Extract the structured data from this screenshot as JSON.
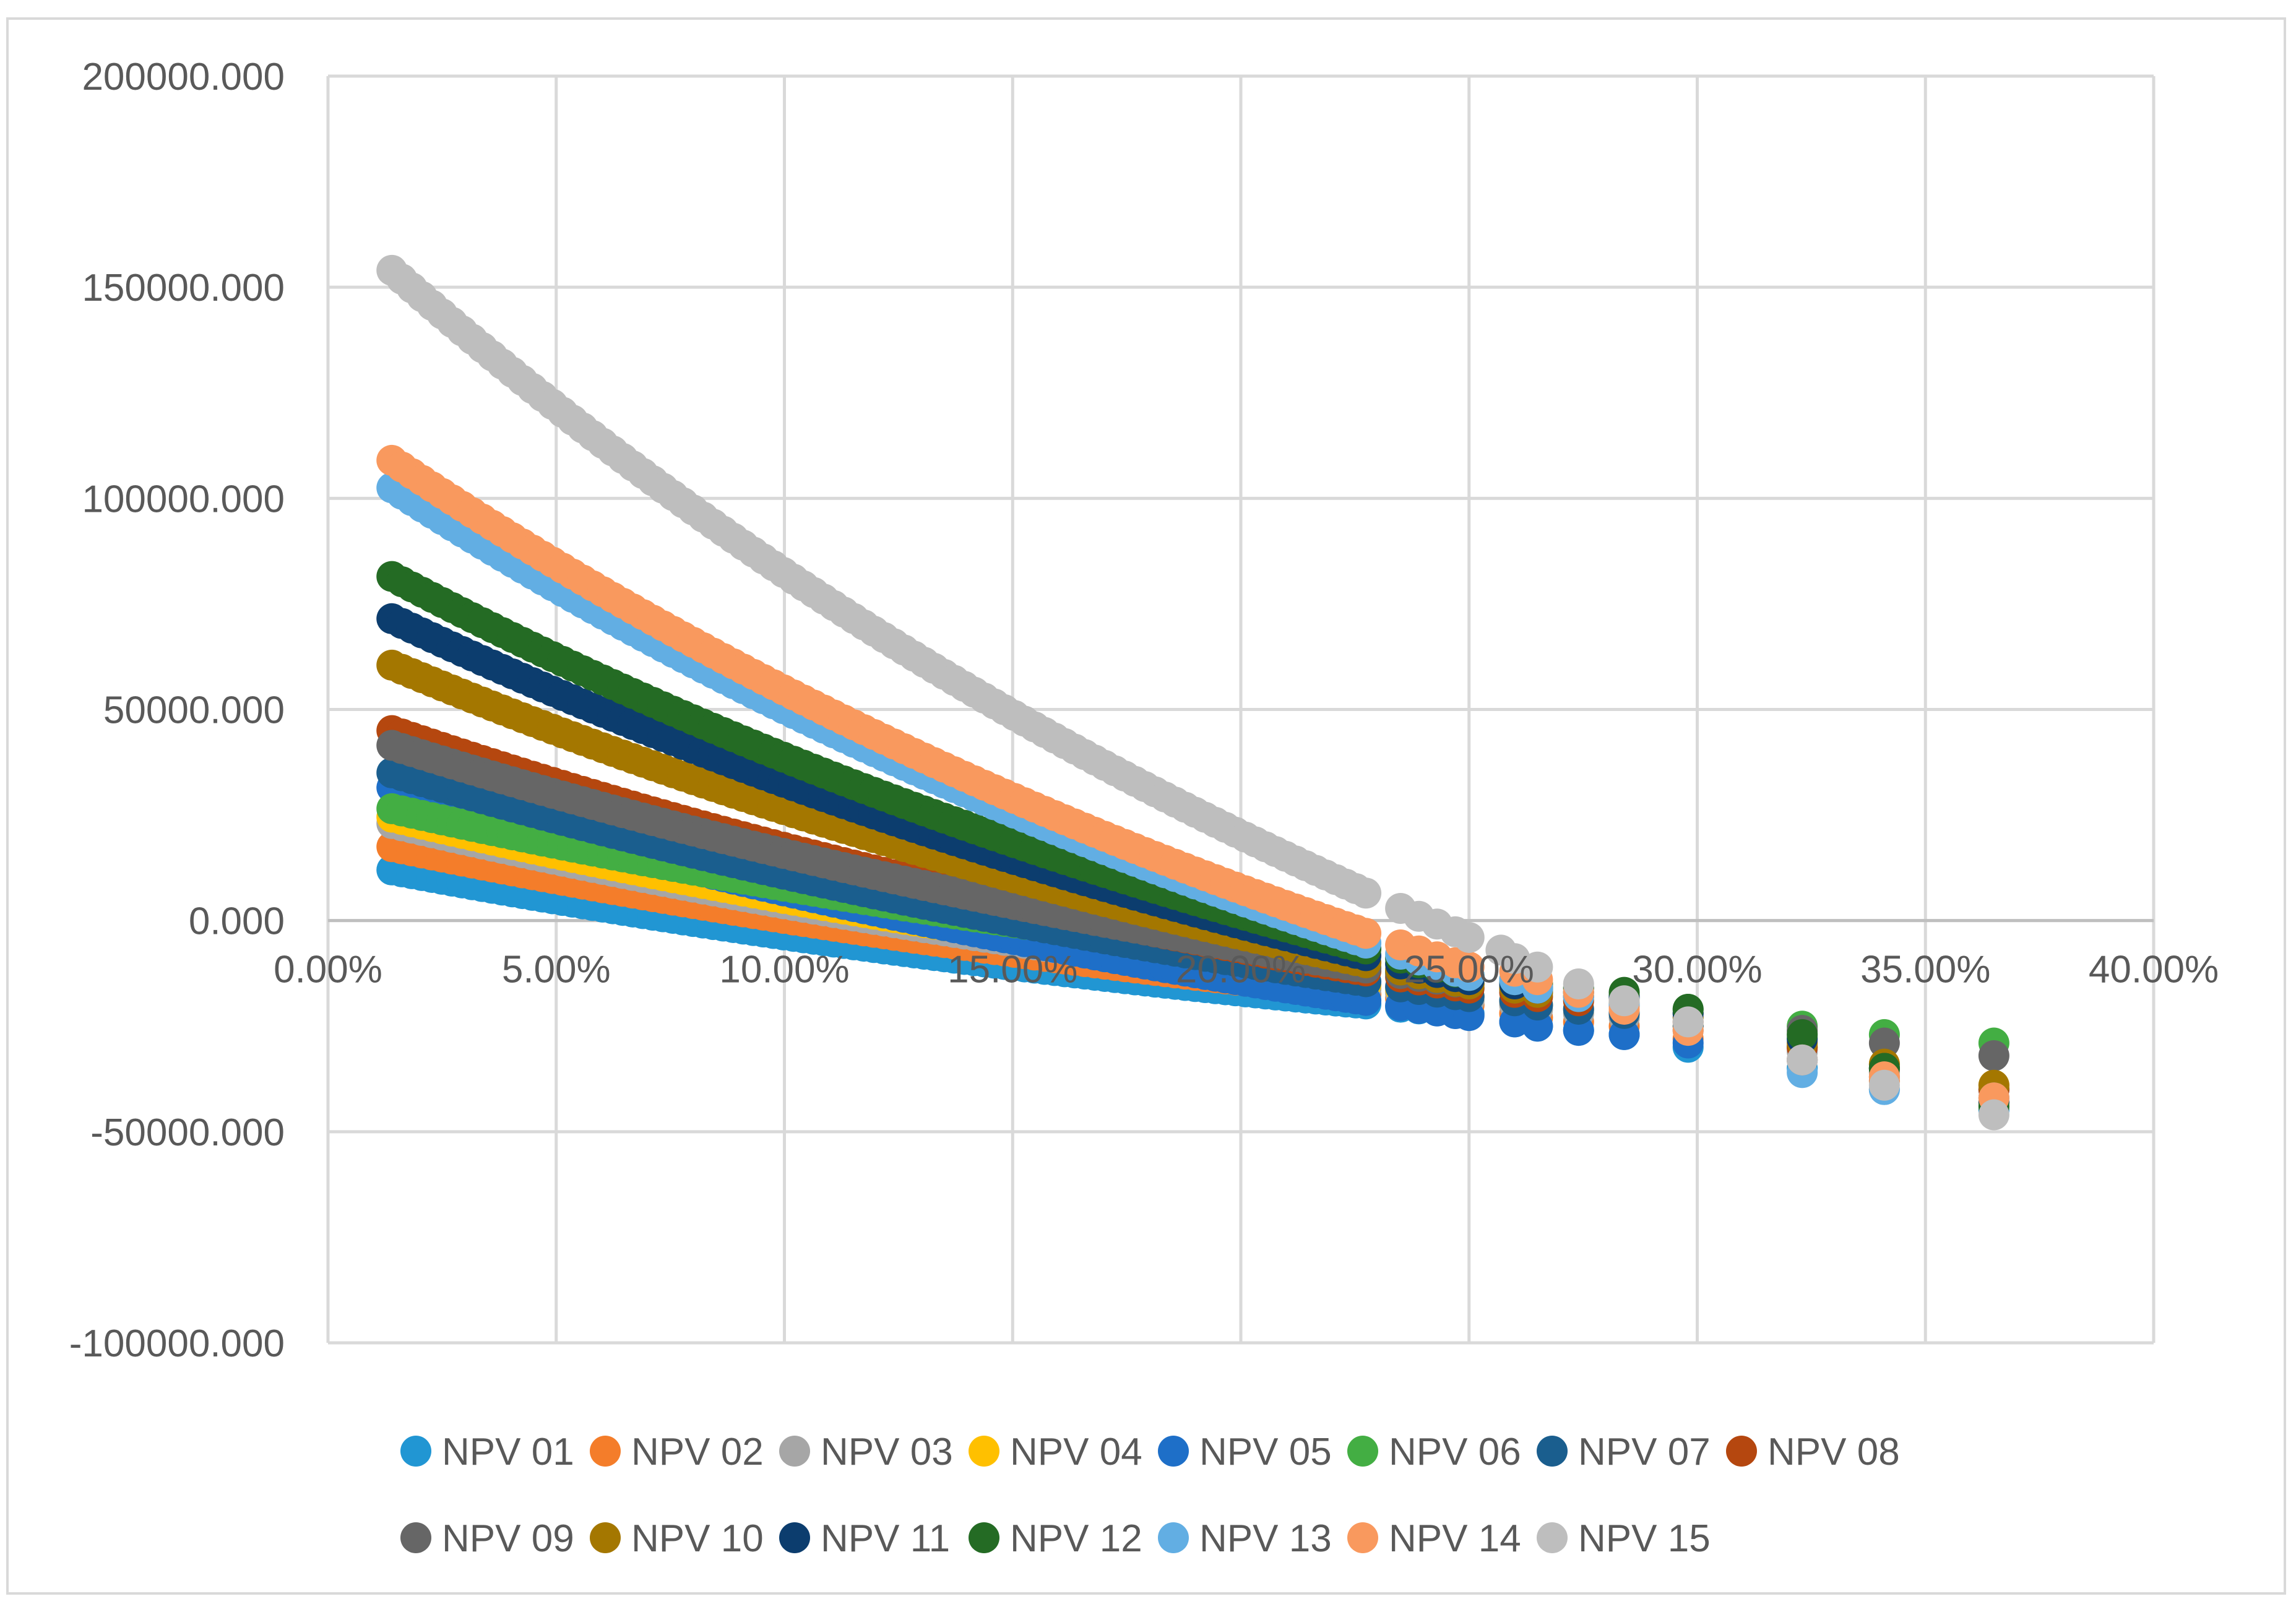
{
  "chart_data": {
    "type": "scatter",
    "title": "",
    "xlabel": "",
    "ylabel": "",
    "xlim": [
      0,
      0.4
    ],
    "ylim": [
      -100000,
      200000
    ],
    "x_ticks": [
      0,
      0.05,
      0.1,
      0.15,
      0.2,
      0.25,
      0.3,
      0.35,
      0.4
    ],
    "x_tick_labels": [
      "0.00%",
      "5.00%",
      "10.00%",
      "15.00%",
      "20.00%",
      "25.00%",
      "30.00%",
      "35.00%",
      "40.00%"
    ],
    "y_ticks": [
      -100000,
      -50000,
      0,
      50000,
      100000,
      150000,
      200000
    ],
    "y_tick_labels": [
      "-100000.000",
      "-50000.000",
      "0.000",
      "50000.000",
      "100000.000",
      "150000.000",
      "200000.000"
    ],
    "grid": true,
    "legend_position": "bottom",
    "series": [
      {
        "name": "NPV 01",
        "color": "#2196D3",
        "start": [
          0.014,
          12000
        ],
        "end": [
          0.25,
          -22000
        ],
        "tail_y": [
          -24000,
          -25000,
          -26000,
          -27000,
          -30000,
          -35000,
          -40000,
          -45000
        ]
      },
      {
        "name": "NPV 02",
        "color": "#F47D2A",
        "start": [
          0.014,
          17500
        ],
        "end": [
          0.25,
          -20000
        ],
        "tail_y": [
          -22000,
          -23000,
          -24000,
          -25000,
          -28000,
          -33000,
          -38000,
          -43000
        ]
      },
      {
        "name": "NPV 03",
        "color": "#A6A6A6",
        "start": [
          0.014,
          23000
        ],
        "end": [
          0.25,
          -19000
        ],
        "tail_y": [
          -20000,
          -21000,
          -22000,
          -23000,
          -26000,
          -31000,
          -36000,
          -40000
        ]
      },
      {
        "name": "NPV 04",
        "color": "#FFC000",
        "start": [
          0.014,
          24500
        ],
        "end": [
          0.25,
          -18000
        ],
        "tail_y": [
          -19000,
          -20000,
          -21000,
          -22000,
          -25000,
          -30000,
          -34000,
          -39000
        ]
      },
      {
        "name": "NPV 05",
        "color": "#1E6FC8",
        "start": [
          0.014,
          31500
        ],
        "end": [
          0.25,
          -22500
        ],
        "tail_y": [
          -24000,
          -25000,
          -26000,
          -27000,
          -29000,
          -33000,
          -37000,
          -42000
        ]
      },
      {
        "name": "NPV 06",
        "color": "#43AE43",
        "start": [
          0.014,
          26500
        ],
        "end": [
          0.25,
          -14000
        ],
        "tail_y": [
          -15000,
          -16000,
          -17000,
          -18000,
          -21000,
          -25000,
          -27000,
          -29000
        ]
      },
      {
        "name": "NPV 07",
        "color": "#1A5E8E",
        "start": [
          0.014,
          35000
        ],
        "end": [
          0.25,
          -18000
        ],
        "tail_y": [
          -19000,
          -20000,
          -21000,
          -22000,
          -25000,
          -30000,
          -35000,
          -40000
        ]
      },
      {
        "name": "NPV 08",
        "color": "#B5470F",
        "start": [
          0.014,
          45000
        ],
        "end": [
          0.25,
          -16000
        ],
        "tail_y": [
          -17000,
          -18000,
          -19000,
          -20000,
          -24000,
          -30000,
          -35000,
          -40000
        ]
      },
      {
        "name": "NPV 09",
        "color": "#666666",
        "start": [
          0.014,
          41500
        ],
        "end": [
          0.25,
          -15000
        ],
        "tail_y": [
          -16000,
          -17000,
          -18000,
          -19000,
          -22000,
          -26000,
          -29000,
          -32000
        ]
      },
      {
        "name": "NPV 10",
        "color": "#A47700",
        "start": [
          0.014,
          60500
        ],
        "end": [
          0.25,
          -15000
        ],
        "tail_y": [
          -16000,
          -17000,
          -18000,
          -19000,
          -23000,
          -29000,
          -34000,
          -39000
        ]
      },
      {
        "name": "NPV 11",
        "color": "#0C3D6E",
        "start": [
          0.014,
          71500
        ],
        "end": [
          0.25,
          -14000
        ],
        "tail_y": [
          -15000,
          -16000,
          -17000,
          -18000,
          -22000,
          -28000,
          -35000,
          -43000
        ]
      },
      {
        "name": "NPV 12",
        "color": "#246B24",
        "start": [
          0.014,
          81500
        ],
        "end": [
          0.25,
          -13000
        ],
        "tail_y": [
          -14000,
          -15000,
          -16000,
          -17000,
          -21000,
          -27000,
          -35000,
          -44000
        ]
      },
      {
        "name": "NPV 13",
        "color": "#62AEE3",
        "start": [
          0.014,
          102500
        ],
        "end": [
          0.25,
          -13000
        ],
        "tail_y": [
          -14000,
          -16000,
          -18000,
          -20000,
          -26000,
          -36000,
          -40000,
          -42000
        ]
      },
      {
        "name": "NPV 14",
        "color": "#F9995E",
        "start": [
          0.014,
          109000
        ],
        "end": [
          0.25,
          -11000
        ],
        "tail_y": [
          -12000,
          -14000,
          -17000,
          -21000,
          -26000,
          -33000,
          -37000,
          -42000
        ]
      },
      {
        "name": "NPV 15",
        "color": "#BEBEBE",
        "start": [
          0.014,
          154000
        ],
        "end": [
          0.25,
          -4000
        ],
        "tail_y": [
          -7000,
          -9000,
          -11000,
          -15000,
          -19000,
          -24000,
          -33000,
          -39000,
          -46000
        ]
      }
    ],
    "tail_x": [
      0.257,
      0.26,
      0.265,
      0.274,
      0.284,
      0.298,
      0.323,
      0.341,
      0.365
    ]
  }
}
